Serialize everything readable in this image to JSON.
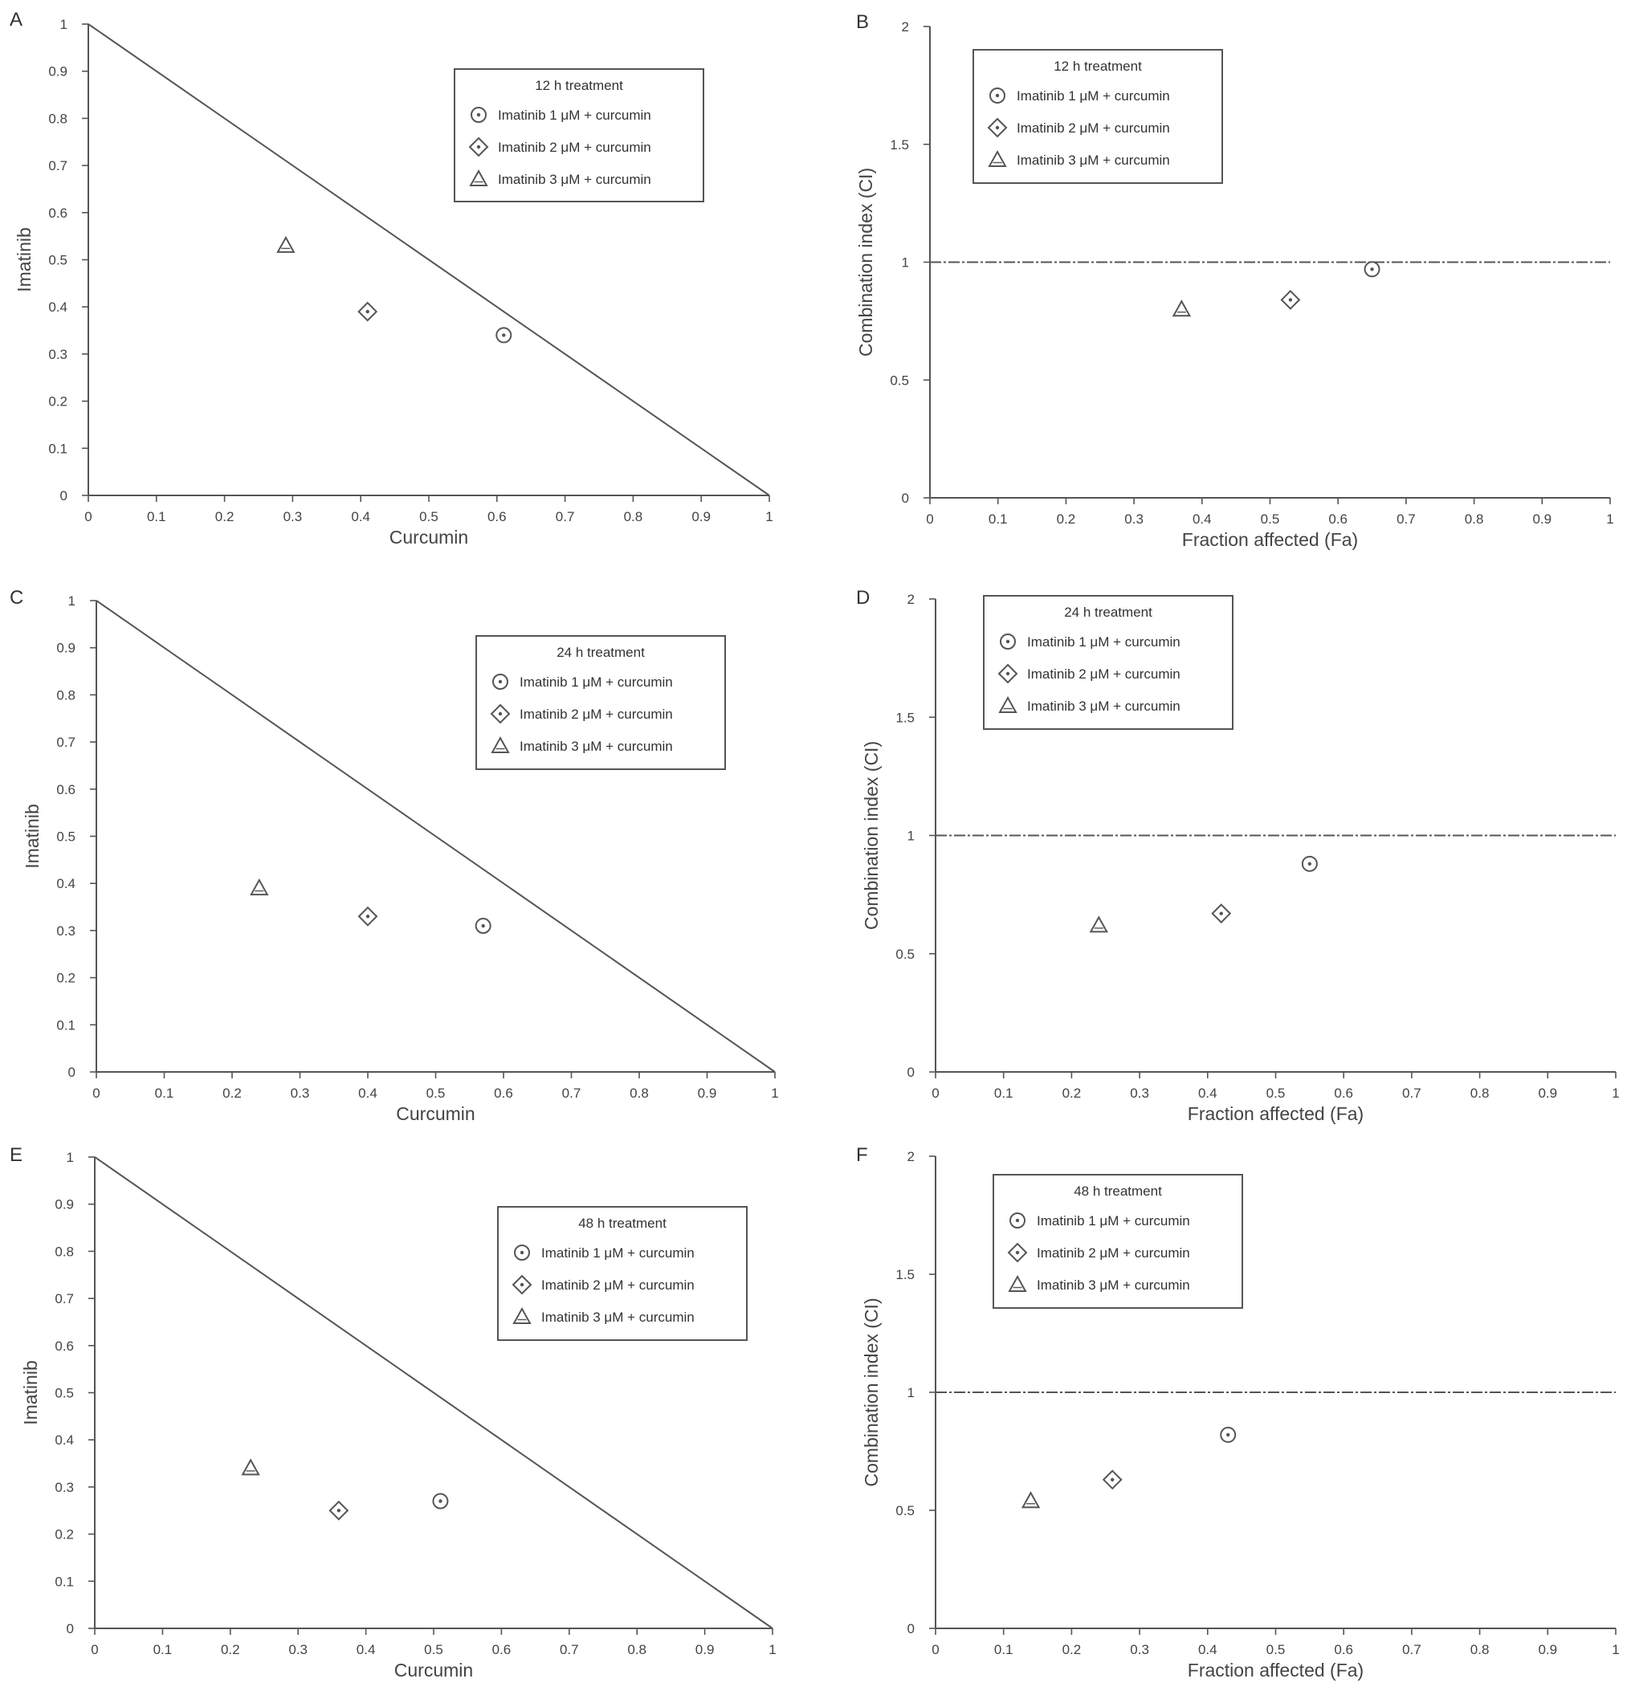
{
  "chart_data": [
    {
      "id": "A",
      "panel_label": "A",
      "type": "scatter",
      "subtype": "isobologram",
      "xlabel": "Curcumin",
      "ylabel": "Imatinib",
      "xlim": [
        0,
        1
      ],
      "ylim": [
        0,
        1
      ],
      "x_ticks": [
        "0",
        "0.1",
        "0.2",
        "0.3",
        "0.4",
        "0.5",
        "0.6",
        "0.7",
        "0.8",
        "0.9",
        "1"
      ],
      "y_ticks": [
        "0",
        "0.1",
        "0.2",
        "0.3",
        "0.4",
        "0.5",
        "0.6",
        "0.7",
        "0.8",
        "0.9",
        "1"
      ],
      "additivity_line": [
        [
          0,
          1
        ],
        [
          1,
          0
        ]
      ],
      "legend": {
        "title": "12 h treatment",
        "placement": "top-right"
      },
      "series": [
        {
          "name": "Imatinib 1 μM + curcumin",
          "marker": "circle-dot",
          "x": [
            0.61
          ],
          "y": [
            0.34
          ]
        },
        {
          "name": "Imatinib 2 μM + curcumin",
          "marker": "diamond-dot",
          "x": [
            0.41
          ],
          "y": [
            0.39
          ]
        },
        {
          "name": "Imatinib 3 μM + curcumin",
          "marker": "triangle",
          "x": [
            0.29
          ],
          "y": [
            0.53
          ]
        }
      ]
    },
    {
      "id": "B",
      "panel_label": "B",
      "type": "scatter",
      "xlabel": "Fraction affected (Fa)",
      "ylabel": "Combination index (CI)",
      "xlim": [
        0,
        1
      ],
      "ylim": [
        0,
        2
      ],
      "x_ticks": [
        "0",
        "0.1",
        "0.2",
        "0.3",
        "0.4",
        "0.5",
        "0.6",
        "0.7",
        "0.8",
        "0.9",
        "1"
      ],
      "y_ticks": [
        "0",
        "0.5",
        "1",
        "1.5",
        "2"
      ],
      "reference_line_y": 1,
      "legend": {
        "title": "12 h treatment",
        "placement": "top-left"
      },
      "series": [
        {
          "name": "Imatinib 1 μM + curcumin",
          "marker": "circle-dot",
          "x": [
            0.65
          ],
          "y": [
            0.97
          ]
        },
        {
          "name": "Imatinib 2 μM + curcumin",
          "marker": "diamond-dot",
          "x": [
            0.53
          ],
          "y": [
            0.84
          ]
        },
        {
          "name": "Imatinib 3 μM + curcumin",
          "marker": "triangle",
          "x": [
            0.37
          ],
          "y": [
            0.8
          ]
        }
      ]
    },
    {
      "id": "C",
      "panel_label": "C",
      "type": "scatter",
      "subtype": "isobologram",
      "xlabel": "Curcumin",
      "ylabel": "Imatinib",
      "xlim": [
        0,
        1
      ],
      "ylim": [
        0,
        1
      ],
      "x_ticks": [
        "0",
        "0.1",
        "0.2",
        "0.3",
        "0.4",
        "0.5",
        "0.6",
        "0.7",
        "0.8",
        "0.9",
        "1"
      ],
      "y_ticks": [
        "0",
        "0.1",
        "0.2",
        "0.3",
        "0.4",
        "0.5",
        "0.6",
        "0.7",
        "0.8",
        "0.9",
        "1"
      ],
      "additivity_line": [
        [
          0,
          1
        ],
        [
          1,
          0
        ]
      ],
      "legend": {
        "title": "24 h treatment",
        "placement": "top-right"
      },
      "series": [
        {
          "name": "Imatinib 1 μM + curcumin",
          "marker": "circle-dot",
          "x": [
            0.57
          ],
          "y": [
            0.31
          ]
        },
        {
          "name": "Imatinib 2 μM + curcumin",
          "marker": "diamond-dot",
          "x": [
            0.4
          ],
          "y": [
            0.33
          ]
        },
        {
          "name": "Imatinib 3 μM + curcumin",
          "marker": "triangle",
          "x": [
            0.24
          ],
          "y": [
            0.39
          ]
        }
      ]
    },
    {
      "id": "D",
      "panel_label": "D",
      "type": "scatter",
      "xlabel": "Fraction affected (Fa)",
      "ylabel": "Combination index (CI)",
      "xlim": [
        0,
        1
      ],
      "ylim": [
        0,
        2
      ],
      "x_ticks": [
        "0",
        "0.1",
        "0.2",
        "0.3",
        "0.4",
        "0.5",
        "0.6",
        "0.7",
        "0.8",
        "0.9",
        "1"
      ],
      "y_ticks": [
        "0",
        "0.5",
        "1",
        "1.5",
        "2"
      ],
      "reference_line_y": 1,
      "legend": {
        "title": "24 h treatment",
        "placement": "top-left"
      },
      "series": [
        {
          "name": "Imatinib 1 μM + curcumin",
          "marker": "circle-dot",
          "x": [
            0.55
          ],
          "y": [
            0.88
          ]
        },
        {
          "name": "Imatinib 2 μM + curcumin",
          "marker": "diamond-dot",
          "x": [
            0.42
          ],
          "y": [
            0.67
          ]
        },
        {
          "name": "Imatinib 3 μM + curcumin",
          "marker": "triangle",
          "x": [
            0.24
          ],
          "y": [
            0.62
          ]
        }
      ]
    },
    {
      "id": "E",
      "panel_label": "E",
      "type": "scatter",
      "subtype": "isobologram",
      "xlabel": "Curcumin",
      "ylabel": "Imatinib",
      "xlim": [
        0,
        1
      ],
      "ylim": [
        0,
        1
      ],
      "x_ticks": [
        "0",
        "0.1",
        "0.2",
        "0.3",
        "0.4",
        "0.5",
        "0.6",
        "0.7",
        "0.8",
        "0.9",
        "1"
      ],
      "y_ticks": [
        "0",
        "0.1",
        "0.2",
        "0.3",
        "0.4",
        "0.5",
        "0.6",
        "0.7",
        "0.8",
        "0.9",
        "1"
      ],
      "additivity_line": [
        [
          0,
          1
        ],
        [
          1,
          0
        ]
      ],
      "legend": {
        "title": "48 h treatment",
        "placement": "top-right"
      },
      "series": [
        {
          "name": "Imatinib 1 μM + curcumin",
          "marker": "circle-dot",
          "x": [
            0.51
          ],
          "y": [
            0.27
          ]
        },
        {
          "name": "Imatinib 2 μM + curcumin",
          "marker": "diamond-dot",
          "x": [
            0.36
          ],
          "y": [
            0.25
          ]
        },
        {
          "name": "Imatinib 3 μM + curcumin",
          "marker": "triangle",
          "x": [
            0.23
          ],
          "y": [
            0.34
          ]
        }
      ]
    },
    {
      "id": "F",
      "panel_label": "F",
      "type": "scatter",
      "xlabel": "Fraction affected (Fa)",
      "ylabel": "Combination index (CI)",
      "xlim": [
        0,
        1
      ],
      "ylim": [
        0,
        2
      ],
      "x_ticks": [
        "0",
        "0.1",
        "0.2",
        "0.3",
        "0.4",
        "0.5",
        "0.6",
        "0.7",
        "0.8",
        "0.9",
        "1"
      ],
      "y_ticks": [
        "0",
        "0.5",
        "1",
        "1.5",
        "2"
      ],
      "reference_line_y": 1,
      "legend": {
        "title": "48 h treatment",
        "placement": "top-left"
      },
      "series": [
        {
          "name": "Imatinib 1 μM + curcumin",
          "marker": "circle-dot",
          "x": [
            0.43
          ],
          "y": [
            0.82
          ]
        },
        {
          "name": "Imatinib 2 μM + curcumin",
          "marker": "diamond-dot",
          "x": [
            0.26
          ],
          "y": [
            0.63
          ]
        },
        {
          "name": "Imatinib 3 μM + curcumin",
          "marker": "triangle",
          "x": [
            0.14
          ],
          "y": [
            0.54
          ]
        }
      ]
    }
  ]
}
